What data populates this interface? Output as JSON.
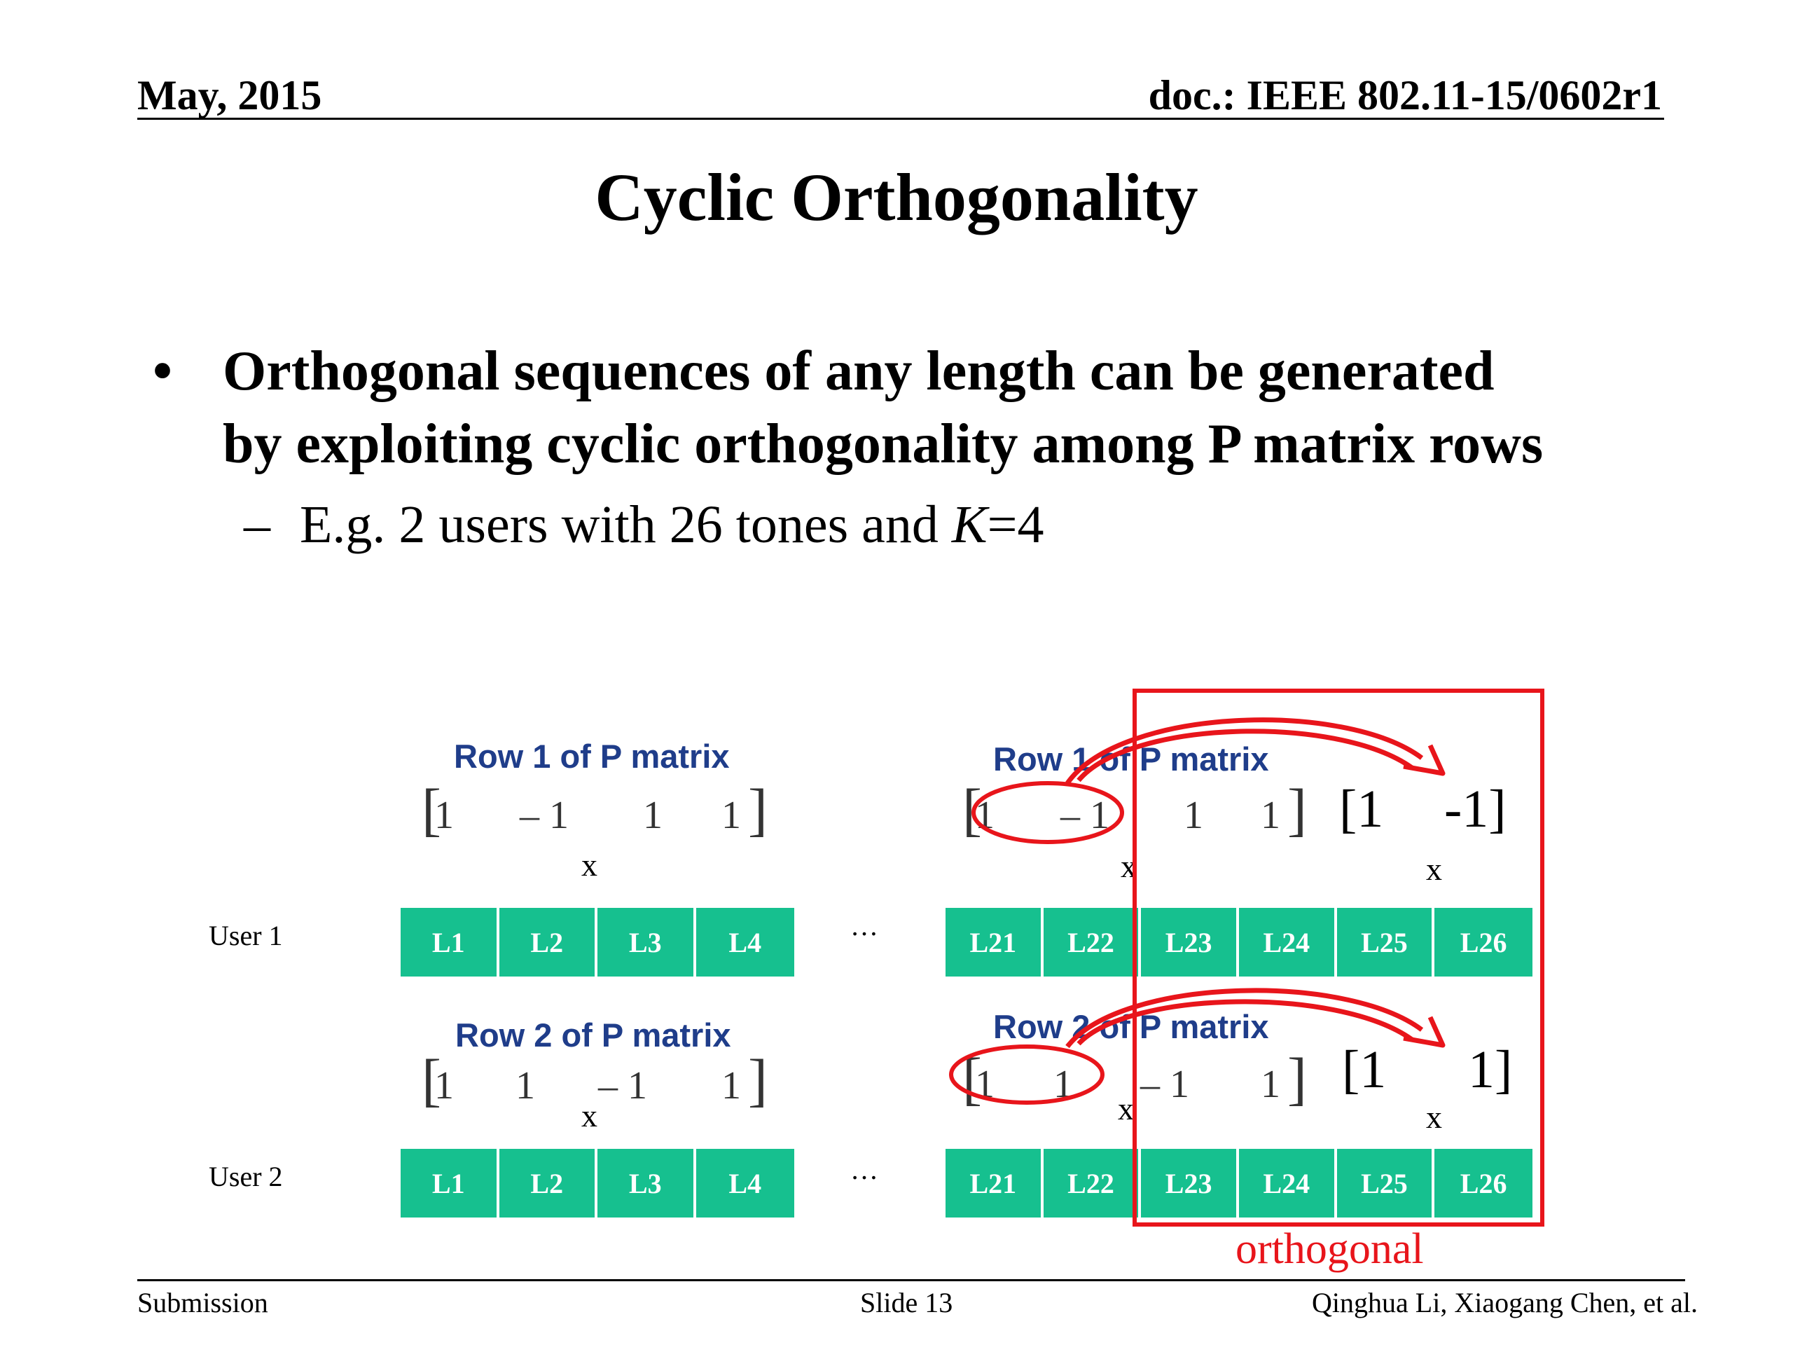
{
  "header": {
    "date": "May, 2015",
    "doc_id": "doc.: IEEE 802.11-15/0602r1"
  },
  "title": "Cyclic Orthogonality",
  "bullets": {
    "main_line1": "Orthogonal sequences of any length can be generated",
    "main_line2": "by exploiting cyclic orthogonality among P matrix rows",
    "sub_prefix": "E.g. 2 users with 26 tones and ",
    "sub_k": "K",
    "sub_suffix": "=4",
    "bullet_symbol": "•",
    "dash_symbol": "–"
  },
  "diagram": {
    "row1_label": "Row 1 of P matrix",
    "row2_label": "Row 2 of P matrix",
    "row1_values": [
      "1",
      "– 1",
      "1",
      "1"
    ],
    "row2_values": [
      "1",
      "1",
      "– 1",
      "1"
    ],
    "multiply": "x",
    "ellipsis": "…",
    "user1": "User 1",
    "user2": "User 2",
    "left_cells": [
      "L1",
      "L2",
      "L3",
      "L4"
    ],
    "right_cells": [
      "L21",
      "L22",
      "L23",
      "L24",
      "L25",
      "L26"
    ],
    "wrap1_open": "[1",
    "wrap1_close": "-1]",
    "wrap2_open": "[1",
    "wrap2_close": "1]",
    "bracket_open": "[",
    "bracket_close": "]",
    "orthogonal_label": "orthogonal",
    "highlight_color": "#e8151b",
    "cell_color": "#16c08f",
    "row_label_color": "#1f3d8a"
  },
  "footer": {
    "left": "Submission",
    "center": "Slide 13",
    "right": "Qinghua Li, Xiaogang Chen, et al."
  }
}
